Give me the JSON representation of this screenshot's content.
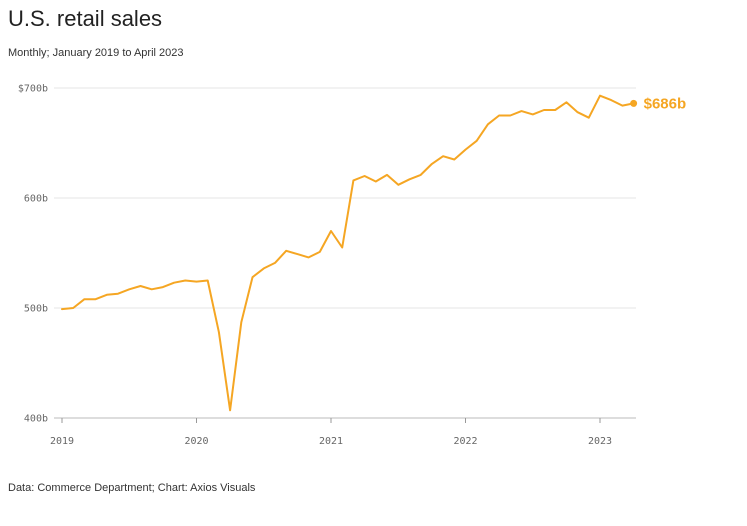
{
  "title": "U.S. retail sales",
  "subtitle": "Monthly; January 2019 to April 2023",
  "source": "Data: Commerce Department; Chart: Axios Visuals",
  "colors": {
    "line": "#f5a623",
    "grid": "#e6e6e6"
  },
  "chart_data": {
    "type": "line",
    "title": "U.S. retail sales",
    "subtitle": "Monthly; January 2019 to April 2023",
    "xlabel": "",
    "ylabel": "",
    "x_start": "2019-01",
    "x_end": "2023-04",
    "ylim": [
      400,
      700
    ],
    "y_ticks": [
      400,
      500,
      600,
      700
    ],
    "y_tick_labels": [
      "400b",
      "500b",
      "600b",
      "$700b"
    ],
    "x_ticks": [
      "2019",
      "2020",
      "2021",
      "2022",
      "2023"
    ],
    "grid": true,
    "series": [
      {
        "x": [
          "2019-01",
          "2019-02",
          "2019-03",
          "2019-04",
          "2019-05",
          "2019-06",
          "2019-07",
          "2019-08",
          "2019-09",
          "2019-10",
          "2019-11",
          "2019-12",
          "2020-01",
          "2020-02",
          "2020-03",
          "2020-04",
          "2020-05",
          "2020-06",
          "2020-07",
          "2020-08",
          "2020-09",
          "2020-10",
          "2020-11",
          "2020-12",
          "2021-01",
          "2021-02",
          "2021-03",
          "2021-04",
          "2021-05",
          "2021-06",
          "2021-07",
          "2021-08",
          "2021-09",
          "2021-10",
          "2021-11",
          "2021-12",
          "2022-01",
          "2022-02",
          "2022-03",
          "2022-04",
          "2022-05",
          "2022-06",
          "2022-07",
          "2022-08",
          "2022-09",
          "2022-10",
          "2022-11",
          "2022-12",
          "2023-01",
          "2023-02",
          "2023-03",
          "2023-04"
        ],
        "values": [
          499,
          500,
          508,
          508,
          512,
          513,
          517,
          520,
          517,
          519,
          523,
          525,
          524,
          525,
          478,
          407,
          487,
          528,
          536,
          541,
          552,
          549,
          546,
          551,
          570,
          555,
          616,
          620,
          615,
          621,
          612,
          617,
          621,
          631,
          638,
          635,
          644,
          652,
          667,
          675,
          675,
          679,
          676,
          680,
          680,
          687,
          678,
          673,
          693,
          689,
          684,
          686
        ]
      }
    ],
    "end_label": "$686b"
  }
}
